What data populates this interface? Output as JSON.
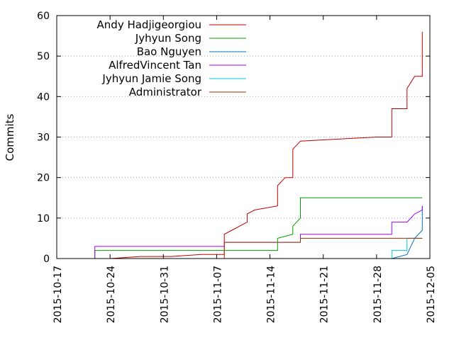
{
  "chart_data": {
    "type": "line",
    "title": "",
    "xlabel": "",
    "ylabel": "Commits",
    "ylim": [
      0,
      60
    ],
    "y_ticks": [
      0,
      10,
      20,
      30,
      40,
      50,
      60
    ],
    "xlim": [
      "2015-10-17",
      "2015-12-05"
    ],
    "x_ticks": [
      "2015-10-17",
      "2015-10-24",
      "2015-10-31",
      "2015-11-07",
      "2015-11-14",
      "2015-11-21",
      "2015-11-28",
      "2015-12-05"
    ],
    "grid": "horizontal dotted",
    "legend_position": "top-left",
    "series": [
      {
        "name": "Andy Hadjigeorgiou",
        "color": "#c00000",
        "points": [
          [
            "2015-10-22",
            0
          ],
          [
            "2015-10-24",
            0
          ],
          [
            "2015-10-28",
            0.5
          ],
          [
            "2015-11-01",
            0.5
          ],
          [
            "2015-11-05",
            1
          ],
          [
            "2015-11-07",
            1
          ],
          [
            "2015-11-08",
            1
          ],
          [
            "2015-11-08",
            6
          ],
          [
            "2015-11-09",
            7
          ],
          [
            "2015-11-10",
            8
          ],
          [
            "2015-11-11",
            9
          ],
          [
            "2015-11-11",
            11
          ],
          [
            "2015-11-12",
            12
          ],
          [
            "2015-11-15",
            13
          ],
          [
            "2015-11-15",
            18
          ],
          [
            "2015-11-16",
            20
          ],
          [
            "2015-11-17",
            20
          ],
          [
            "2015-11-17",
            27
          ],
          [
            "2015-11-18",
            29
          ],
          [
            "2015-11-28",
            30
          ],
          [
            "2015-11-30",
            30
          ],
          [
            "2015-11-30",
            37
          ],
          [
            "2015-12-02",
            37
          ],
          [
            "2015-12-02",
            42
          ],
          [
            "2015-12-03",
            45
          ],
          [
            "2015-12-04",
            45
          ],
          [
            "2015-12-04",
            49
          ],
          [
            "2015-12-04",
            56
          ]
        ]
      },
      {
        "name": "Jyhyun Song",
        "color": "#00a000",
        "points": [
          [
            "2015-10-22",
            0
          ],
          [
            "2015-10-22",
            2
          ],
          [
            "2015-11-15",
            2
          ],
          [
            "2015-11-15",
            5
          ],
          [
            "2015-11-17",
            6
          ],
          [
            "2015-11-17",
            8
          ],
          [
            "2015-11-18",
            10
          ],
          [
            "2015-11-18",
            15
          ],
          [
            "2015-12-04",
            15
          ]
        ]
      },
      {
        "name": "Bao Nguyen",
        "color": "#0070c0",
        "points": [
          [
            "2015-11-30",
            0
          ],
          [
            "2015-12-02",
            1
          ],
          [
            "2015-12-03",
            5
          ],
          [
            "2015-12-04",
            7
          ],
          [
            "2015-12-04",
            13
          ]
        ]
      },
      {
        "name": "AlfredVincent Tan",
        "color": "#a000ff",
        "points": [
          [
            "2015-10-22",
            0
          ],
          [
            "2015-10-22",
            3
          ],
          [
            "2015-11-08",
            3
          ],
          [
            "2015-11-08",
            4
          ],
          [
            "2015-11-18",
            4
          ],
          [
            "2015-11-18",
            6
          ],
          [
            "2015-11-30",
            6
          ],
          [
            "2015-11-30",
            9
          ],
          [
            "2015-12-02",
            9
          ],
          [
            "2015-12-03",
            11
          ],
          [
            "2015-12-04",
            12
          ],
          [
            "2015-12-04",
            13
          ]
        ]
      },
      {
        "name": "Jyhyun Jamie Song",
        "color": "#00c8e0",
        "points": [
          [
            "2015-11-30",
            0
          ],
          [
            "2015-11-30",
            2
          ],
          [
            "2015-12-02",
            2
          ],
          [
            "2015-12-02",
            5
          ],
          [
            "2015-12-04",
            5
          ]
        ]
      },
      {
        "name": "Administrator",
        "color": "#a03000",
        "points": [
          [
            "2015-11-08",
            0
          ],
          [
            "2015-11-08",
            4
          ],
          [
            "2015-11-18",
            4
          ],
          [
            "2015-11-18",
            5
          ],
          [
            "2015-12-04",
            5
          ]
        ]
      }
    ]
  }
}
